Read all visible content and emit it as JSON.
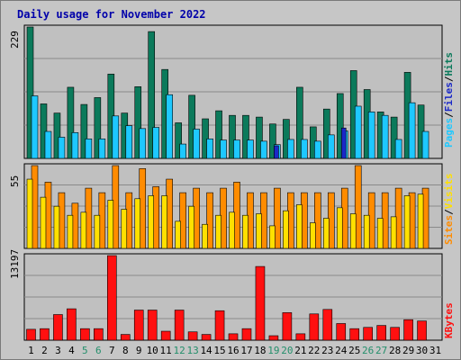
{
  "title": "Daily usage for November 2022",
  "colors": {
    "hits": "#0b7a5b",
    "files": "#1ec8ff",
    "pages": "#1a28c8",
    "visits": "#ff8c00",
    "sites": "#ffe000",
    "kbytes": "#ff1010",
    "weekend_label": "#238f6b",
    "panel_bg": "#c0c0c0",
    "grid": "#8a8a8a"
  },
  "chart_data": [
    {
      "type": "bar",
      "panel": "hits-files-pages",
      "categories": [
        "1",
        "2",
        "3",
        "4",
        "5",
        "6",
        "7",
        "8",
        "9",
        "10",
        "11",
        "12",
        "13",
        "14",
        "15",
        "16",
        "17",
        "18",
        "19",
        "20",
        "21",
        "22",
        "23",
        "24",
        "25",
        "26",
        "27",
        "28",
        "29",
        "30",
        "31"
      ],
      "weekend_days": [
        "5",
        "6",
        "12",
        "13",
        "19",
        "20",
        "26",
        "27"
      ],
      "y_tick_label": "229",
      "ylim": [
        0,
        229
      ],
      "legend": [
        {
          "text": "Pages",
          "color": "#1ec8ff"
        },
        {
          "text": "/",
          "color": "#000000"
        },
        {
          "text": "Files",
          "color": "#1a28c8"
        },
        {
          "text": "/",
          "color": "#000000"
        },
        {
          "text": "Hits",
          "color": "#0b7a5b"
        }
      ],
      "series": [
        {
          "key": "hits",
          "values": [
            229,
            95,
            79,
            124,
            94,
            106,
            147,
            79,
            125,
            221,
            155,
            62,
            110,
            69,
            83,
            75,
            75,
            72,
            60,
            68,
            124,
            55,
            86,
            113,
            153,
            120,
            81,
            72,
            150,
            93,
            0
          ]
        },
        {
          "key": "files",
          "values": [
            109,
            47,
            37,
            45,
            34,
            34,
            74,
            57,
            52,
            54,
            111,
            25,
            51,
            34,
            32,
            32,
            32,
            30,
            24,
            33,
            33,
            30,
            41,
            48,
            91,
            81,
            75,
            33,
            97,
            47,
            0
          ]
        },
        {
          "key": "pages",
          "values": [
            0,
            0,
            0,
            0,
            0,
            0,
            0,
            0,
            0,
            0,
            0,
            0,
            0,
            0,
            0,
            0,
            0,
            0,
            22,
            0,
            0,
            0,
            0,
            53,
            0,
            0,
            0,
            0,
            0,
            0,
            0
          ]
        }
      ]
    },
    {
      "type": "bar",
      "panel": "visits-sites",
      "categories": [
        "1",
        "2",
        "3",
        "4",
        "5",
        "6",
        "7",
        "8",
        "9",
        "10",
        "11",
        "12",
        "13",
        "14",
        "15",
        "16",
        "17",
        "18",
        "19",
        "20",
        "21",
        "22",
        "23",
        "24",
        "25",
        "26",
        "27",
        "28",
        "29",
        "30",
        "31"
      ],
      "weekend_days": [
        "5",
        "6",
        "12",
        "13",
        "19",
        "20",
        "26",
        "27"
      ],
      "y_tick_label": "55",
      "ylim": [
        0,
        55
      ],
      "legend": [
        {
          "text": "Sites",
          "color": "#ff8c00"
        },
        {
          "text": "/",
          "color": "#000000"
        },
        {
          "text": "Visits",
          "color": "#ffe000"
        }
      ],
      "series": [
        {
          "key": "visits",
          "values": [
            55,
            44,
            37,
            30,
            40,
            37,
            55,
            37,
            53,
            41,
            46,
            37,
            40,
            37,
            40,
            44,
            37,
            37,
            40,
            37,
            37,
            37,
            37,
            40,
            55,
            37,
            37,
            40,
            37,
            40,
            0
          ]
        },
        {
          "key": "sites",
          "values": [
            46,
            34,
            28,
            22,
            24,
            22,
            32,
            26,
            33,
            35,
            35,
            18,
            28,
            16,
            22,
            24,
            22,
            23,
            15,
            25,
            29,
            17,
            20,
            27,
            23,
            22,
            20,
            21,
            35,
            36,
            0
          ]
        }
      ]
    },
    {
      "type": "bar",
      "panel": "kbytes",
      "categories": [
        "1",
        "2",
        "3",
        "4",
        "5",
        "6",
        "7",
        "8",
        "9",
        "10",
        "11",
        "12",
        "13",
        "14",
        "15",
        "16",
        "17",
        "18",
        "19",
        "20",
        "21",
        "22",
        "23",
        "24",
        "25",
        "26",
        "27",
        "28",
        "29",
        "30",
        "31"
      ],
      "weekend_days": [
        "5",
        "6",
        "12",
        "13",
        "19",
        "20",
        "26",
        "27"
      ],
      "y_tick_label": "13197",
      "ylim": [
        0,
        13197
      ],
      "legend": [
        {
          "text": "KBytes",
          "color": "#ff1010"
        }
      ],
      "series": [
        {
          "key": "kbytes",
          "values": [
            1700,
            1800,
            4000,
            4900,
            1800,
            1800,
            13197,
            900,
            4700,
            4700,
            1400,
            4700,
            1300,
            900,
            4600,
            1000,
            1800,
            11500,
            700,
            4300,
            1000,
            4100,
            4800,
            2600,
            1800,
            2000,
            2300,
            2000,
            3200,
            3000,
            0
          ]
        }
      ]
    }
  ]
}
